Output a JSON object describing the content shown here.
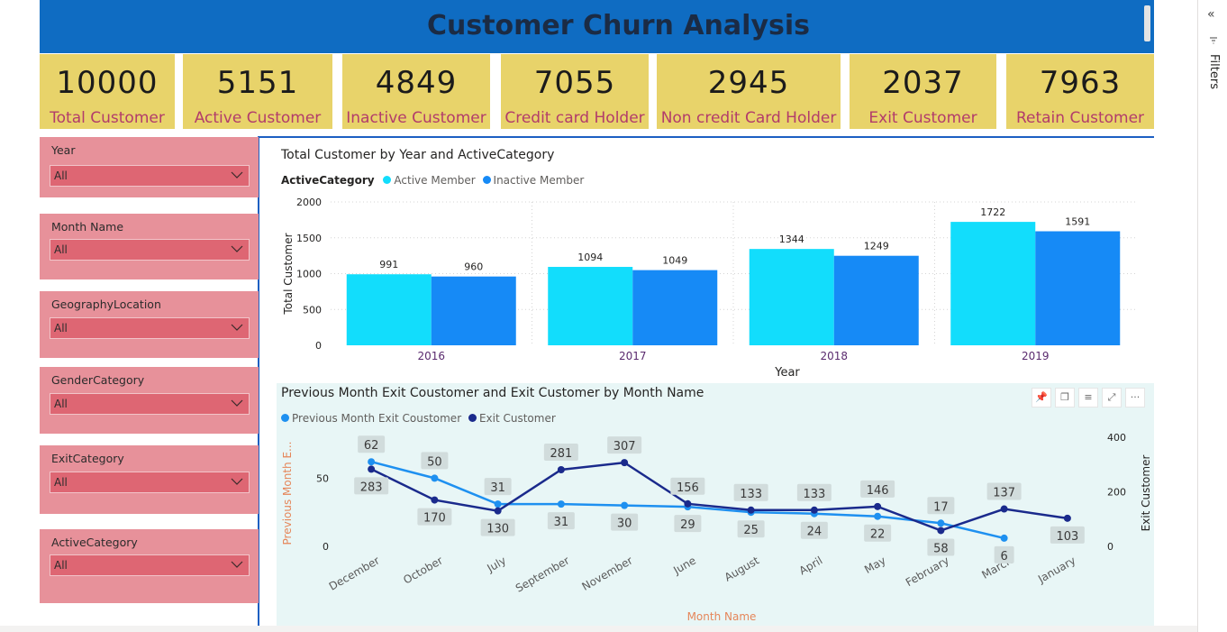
{
  "header": {
    "title": "Customer Churn Analysis"
  },
  "kpis": [
    {
      "value": "10000",
      "label": "Total Customer"
    },
    {
      "value": "5151",
      "label": "Active Customer"
    },
    {
      "value": "4849",
      "label": "Inactive Customer"
    },
    {
      "value": "7055",
      "label": "Credit  card  Holder"
    },
    {
      "value": "2945",
      "label": "Non credit Card Holder"
    },
    {
      "value": "2037",
      "label": "Exit Customer"
    },
    {
      "value": "7963",
      "label": "Retain Customer"
    }
  ],
  "slicers": [
    {
      "title": "Year",
      "value": "All"
    },
    {
      "title": "Month Name",
      "value": "All"
    },
    {
      "title": "GeographyLocation",
      "value": "All"
    },
    {
      "title": "GenderCategory",
      "value": "All"
    },
    {
      "title": "ExitCategory",
      "value": "All"
    },
    {
      "title": "ActiveCategory",
      "value": "All"
    }
  ],
  "filters_pane": {
    "label": "Filters",
    "collapse_glyph": "«"
  },
  "colors": {
    "header": "#0f6cc2",
    "kpi_bg": "#e8d36a",
    "kpi_label": "#b23c6b",
    "slicer_bg": "#e7919a",
    "slicer_box": "#de6673",
    "active_member": "#12ddfc",
    "inactive_member": "#168af6",
    "prev_month_line": "#1e90f0",
    "exit_line": "#1a2a8c"
  },
  "chart_data": [
    {
      "type": "bar",
      "title": "Total Customer by Year and ActiveCategory",
      "legend_title": "ActiveCategory",
      "xlabel": "Year",
      "ylabel": "Total Customer",
      "ylim": [
        0,
        2000
      ],
      "yticks": [
        0,
        500,
        1000,
        1500,
        2000
      ],
      "categories": [
        "2016",
        "2017",
        "2018",
        "2019"
      ],
      "series": [
        {
          "name": "Active Member",
          "values": [
            991,
            1094,
            1344,
            1722
          ]
        },
        {
          "name": "Inactive Member",
          "values": [
            960,
            1049,
            1249,
            1591
          ]
        }
      ],
      "grid": true,
      "legend_position": "top-left"
    },
    {
      "type": "line",
      "title": "Previous Month Exit Coustomer and Exit Customer by Month Name",
      "xlabel": "Month Name",
      "ylabel_left": "Previous Month E...",
      "ylabel_right": "Exit Customer",
      "ylim_left": [
        0,
        80
      ],
      "yticks_left": [
        0,
        50
      ],
      "ylim_right": [
        0,
        400
      ],
      "yticks_right": [
        0,
        200,
        400
      ],
      "categories": [
        "December",
        "October",
        "July",
        "September",
        "November",
        "June",
        "August",
        "April",
        "May",
        "February",
        "March",
        "January"
      ],
      "series": [
        {
          "name": "Previous Month Exit Coustomer",
          "axis": "left",
          "values": [
            62,
            50,
            31,
            31,
            30,
            29,
            25,
            24,
            22,
            17,
            6,
            null
          ]
        },
        {
          "name": "Exit Customer",
          "axis": "right",
          "values": [
            283,
            170,
            130,
            281,
            307,
            156,
            133,
            133,
            146,
            58,
            137,
            103
          ]
        }
      ],
      "grid": false,
      "legend_position": "top-left"
    }
  ]
}
